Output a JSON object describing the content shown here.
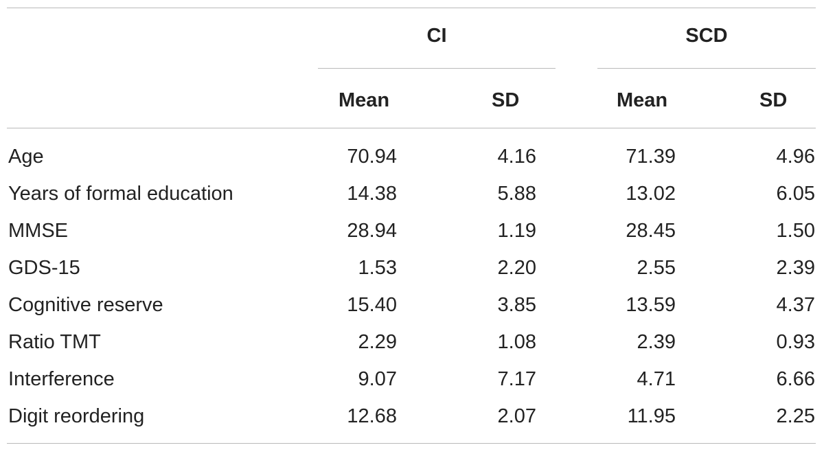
{
  "table": {
    "groups": [
      {
        "label": "CI"
      },
      {
        "label": "SCD"
      }
    ],
    "columns": [
      "Mean",
      "SD",
      "Mean",
      "SD"
    ],
    "rows": [
      {
        "label": "Age",
        "ci_mean": "70.94",
        "ci_sd": "4.16",
        "scd_mean": "71.39",
        "scd_sd": "4.96"
      },
      {
        "label": "Years of formal education",
        "ci_mean": "14.38",
        "ci_sd": "5.88",
        "scd_mean": "13.02",
        "scd_sd": "6.05"
      },
      {
        "label": "MMSE",
        "ci_mean": "28.94",
        "ci_sd": "1.19",
        "scd_mean": "28.45",
        "scd_sd": "1.50"
      },
      {
        "label": "GDS-15",
        "ci_mean": "1.53",
        "ci_sd": "2.20",
        "scd_mean": "2.55",
        "scd_sd": "2.39"
      },
      {
        "label": "Cognitive reserve",
        "ci_mean": "15.40",
        "ci_sd": "3.85",
        "scd_mean": "13.59",
        "scd_sd": "4.37"
      },
      {
        "label": "Ratio TMT",
        "ci_mean": "2.29",
        "ci_sd": "1.08",
        "scd_mean": "2.39",
        "scd_sd": "0.93"
      },
      {
        "label": "Interference",
        "ci_mean": "9.07",
        "ci_sd": "7.17",
        "scd_mean": "4.71",
        "scd_sd": "6.66"
      },
      {
        "label": "Digit reordering",
        "ci_mean": "12.68",
        "ci_sd": "2.07",
        "scd_mean": "11.95",
        "scd_sd": "2.25"
      }
    ]
  }
}
